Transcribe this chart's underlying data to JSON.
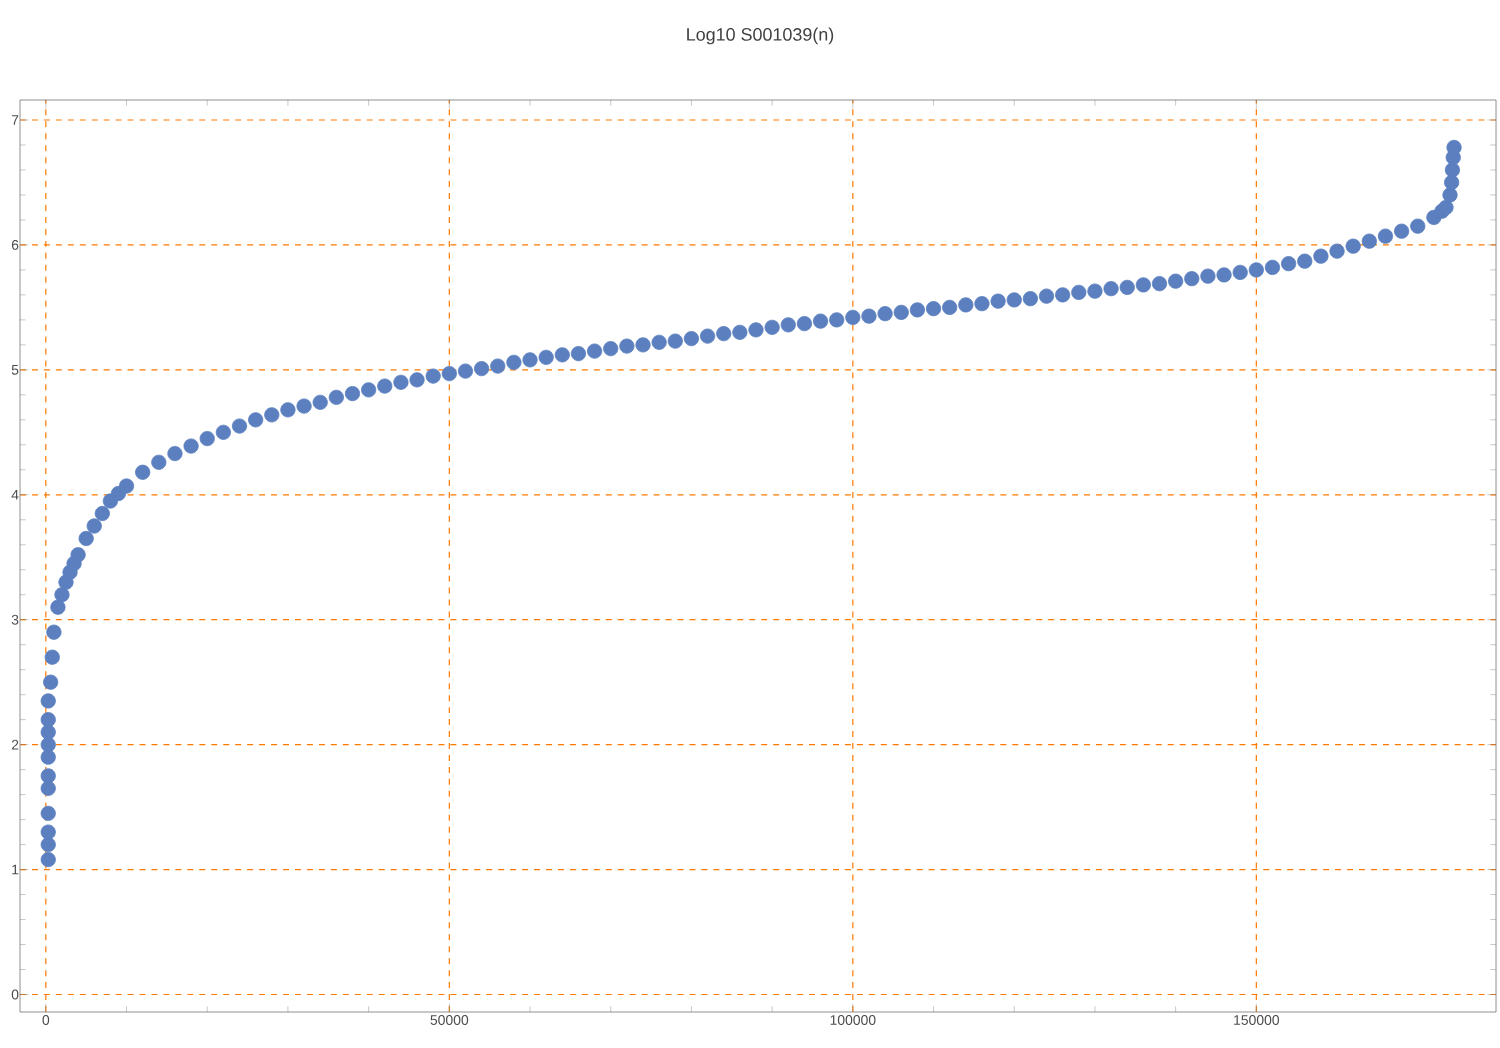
{
  "chart_data": {
    "type": "scatter",
    "title": "Log10 S001039(n)",
    "x": [
      300,
      300,
      300,
      300,
      300,
      300,
      300,
      300,
      300,
      300,
      300,
      600,
      800,
      1000,
      1500,
      2000,
      2500,
      3000,
      3500,
      4000,
      5000,
      6000,
      7000,
      8000,
      9000,
      10000,
      12000,
      14000,
      16000,
      18000,
      20000,
      22000,
      24000,
      26000,
      28000,
      30000,
      32000,
      34000,
      36000,
      38000,
      40000,
      42000,
      44000,
      46000,
      48000,
      50000,
      52000,
      54000,
      56000,
      58000,
      60000,
      62000,
      64000,
      66000,
      68000,
      70000,
      72000,
      74000,
      76000,
      78000,
      80000,
      82000,
      84000,
      86000,
      88000,
      90000,
      92000,
      94000,
      96000,
      98000,
      100000,
      102000,
      104000,
      106000,
      108000,
      110000,
      112000,
      114000,
      116000,
      118000,
      120000,
      122000,
      124000,
      126000,
      128000,
      130000,
      132000,
      134000,
      136000,
      138000,
      140000,
      142000,
      144000,
      146000,
      148000,
      150000,
      152000,
      154000,
      156000,
      158000,
      160000,
      162000,
      164000,
      166000,
      168000,
      170000,
      172000,
      173000,
      173500,
      174000,
      174200,
      174300,
      174400,
      174500
    ],
    "series": [
      {
        "color": "#5b7fbf",
        "values": [
          1.08,
          1.2,
          1.3,
          1.45,
          1.65,
          1.75,
          1.9,
          2.0,
          2.1,
          2.2,
          2.35,
          2.5,
          2.7,
          2.9,
          3.1,
          3.2,
          3.3,
          3.38,
          3.45,
          3.52,
          3.65,
          3.75,
          3.85,
          3.95,
          4.01,
          4.07,
          4.18,
          4.26,
          4.33,
          4.39,
          4.45,
          4.5,
          4.55,
          4.6,
          4.64,
          4.68,
          4.71,
          4.74,
          4.78,
          4.81,
          4.84,
          4.87,
          4.9,
          4.92,
          4.95,
          4.97,
          4.99,
          5.01,
          5.03,
          5.06,
          5.08,
          5.1,
          5.12,
          5.13,
          5.15,
          5.17,
          5.19,
          5.2,
          5.22,
          5.23,
          5.25,
          5.27,
          5.29,
          5.3,
          5.32,
          5.34,
          5.36,
          5.37,
          5.39,
          5.4,
          5.42,
          5.43,
          5.45,
          5.46,
          5.48,
          5.49,
          5.5,
          5.52,
          5.53,
          5.55,
          5.56,
          5.57,
          5.59,
          5.6,
          5.62,
          5.63,
          5.65,
          5.66,
          5.68,
          5.69,
          5.71,
          5.73,
          5.75,
          5.76,
          5.78,
          5.8,
          5.82,
          5.85,
          5.87,
          5.91,
          5.95,
          5.99,
          6.03,
          6.07,
          6.11,
          6.15,
          6.22,
          6.27,
          6.3,
          6.4,
          6.5,
          6.6,
          6.7,
          6.78
        ]
      }
    ],
    "xlim": [
      -3200,
      179700
    ],
    "ylim": [
      -0.14,
      7.16
    ],
    "xticks": [
      0,
      50000,
      100000,
      150000
    ],
    "yticks": [
      0,
      1,
      2,
      3,
      4,
      5,
      6,
      7
    ],
    "grid": true,
    "marker": "circle"
  }
}
